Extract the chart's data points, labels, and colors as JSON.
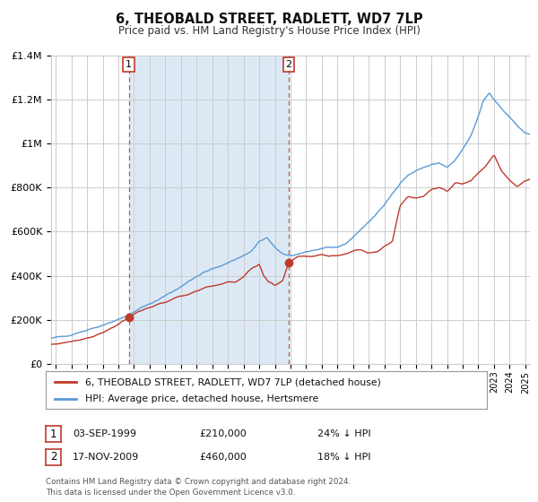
{
  "title": "6, THEOBALD STREET, RADLETT, WD7 7LP",
  "subtitle": "Price paid vs. HM Land Registry's House Price Index (HPI)",
  "legend_line1": "6, THEOBALD STREET, RADLETT, WD7 7LP (detached house)",
  "legend_line2": "HPI: Average price, detached house, Hertsmere",
  "footer1": "Contains HM Land Registry data © Crown copyright and database right 2024.",
  "footer2": "This data is licensed under the Open Government Licence v3.0.",
  "sale1_date": "03-SEP-1999",
  "sale1_price": "£210,000",
  "sale1_hpi": "24% ↓ HPI",
  "sale2_date": "17-NOV-2009",
  "sale2_price": "£460,000",
  "sale2_hpi": "18% ↓ HPI",
  "sale1_x": 1999.67,
  "sale1_y": 210000,
  "sale2_x": 2009.88,
  "sale2_y": 460000,
  "vline1_x": 1999.67,
  "vline2_x": 2009.88,
  "red_color": "#c0392b",
  "blue_color": "#5b9bd5",
  "shade_color": "#dce9f5",
  "grid_color": "#cccccc",
  "ylim": [
    0,
    1400000
  ],
  "xlim": [
    1994.7,
    2025.3
  ],
  "yticks": [
    0,
    200000,
    400000,
    600000,
    800000,
    1000000,
    1200000,
    1400000
  ],
  "ytick_labels": [
    "£0",
    "£200K",
    "£400K",
    "£600K",
    "£800K",
    "£1M",
    "£1.2M",
    "£1.4M"
  ],
  "background_color": "#ffffff"
}
